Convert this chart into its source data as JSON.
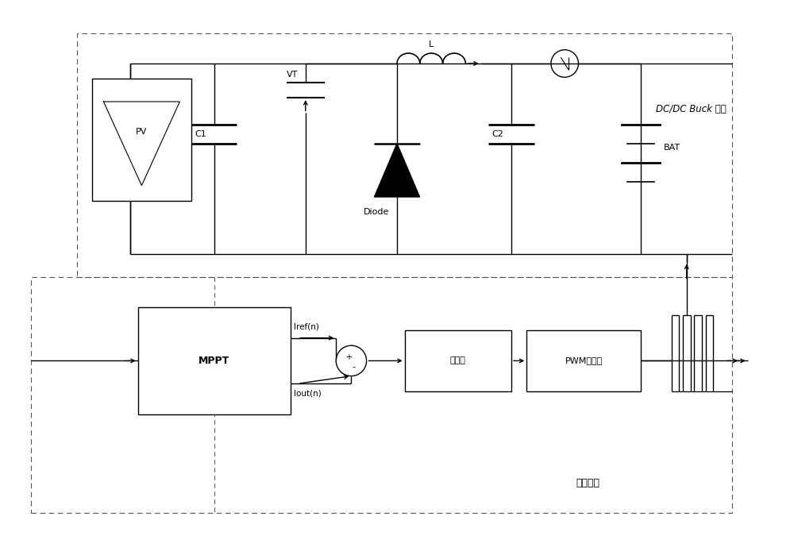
{
  "bg_color": "#ffffff",
  "line_color": "#000000",
  "dashed_color": "#666666",
  "fig_width": 10.0,
  "fig_height": 6.89,
  "dc_buck_label": "DC/DC Buck 电路",
  "control_label": "控制部分",
  "pv_label": "PV",
  "c1_label": "C1",
  "c2_label": "C2",
  "bat_label": "BAT",
  "vt_label": "VT",
  "diode_label": "Diode",
  "l_label": "L",
  "mppt_label": "MPPT",
  "regulator_label": "调节器",
  "pwm_label": "PWM生成器",
  "iref_label": "Iref(n)",
  "iout_label": "Iout(n)"
}
